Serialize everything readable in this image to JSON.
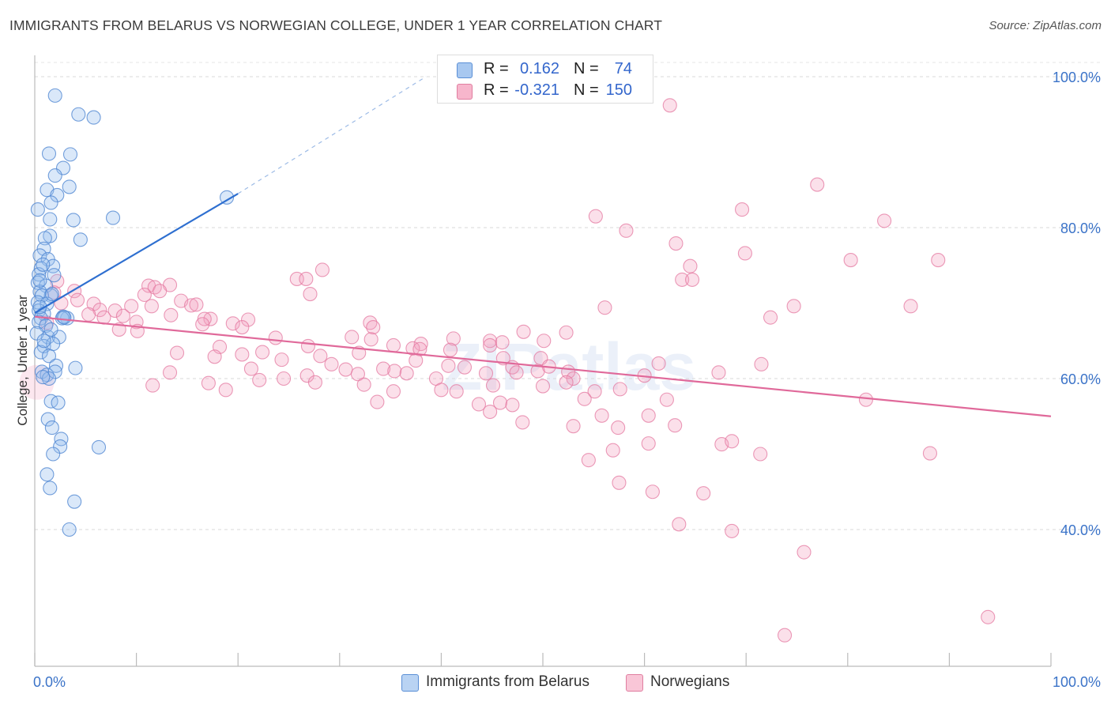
{
  "title": "IMMIGRANTS FROM BELARUS VS NORWEGIAN COLLEGE, UNDER 1 YEAR CORRELATION CHART",
  "source": "Source: ZipAtlas.com",
  "watermark": "ZIPatlas",
  "legend_top": [
    {
      "r_label": "R =",
      "r_value": "0.162",
      "n_label": "N =",
      "n_value": "74",
      "fill": "#a8c8f0",
      "stroke": "#5a8fd6"
    },
    {
      "r_label": "R =",
      "r_value": "-0.321",
      "n_label": "N =",
      "n_value": "150",
      "fill": "#f7b6cc",
      "stroke": "#e07ea0"
    }
  ],
  "legend_bottom": [
    {
      "label": "Immigrants from Belarus",
      "fill": "#a8c8f0",
      "stroke": "#5a8fd6"
    },
    {
      "label": "Norwegians",
      "fill": "#f7b6cc",
      "stroke": "#e07ea0"
    }
  ],
  "chart_data": {
    "type": "scatter",
    "title": "IMMIGRANTS FROM BELARUS VS NORWEGIAN COLLEGE, UNDER 1 YEAR CORRELATION CHART",
    "ylabel": "College, Under 1 year",
    "xlabel": "",
    "xlim": [
      0,
      100
    ],
    "ylim": [
      20,
      102
    ],
    "x_tick_labels": [
      {
        "value": 0,
        "label": "0.0%"
      },
      {
        "value": 100,
        "label": "100.0%"
      }
    ],
    "y_tick_labels": [
      {
        "value": 100,
        "label": "100.0%"
      },
      {
        "value": 80,
        "label": "80.0%"
      },
      {
        "value": 60,
        "label": "60.0%"
      },
      {
        "value": 40,
        "label": "40.0%"
      }
    ],
    "grid": "horizontal dashed",
    "legend_placement": "top-center and bottom",
    "colors": {
      "belarus": "#6d9ee0",
      "norwegians": "#ec8cae",
      "belarus_line": "#2e6fd0",
      "norwegians_line": "#e0699a",
      "tick_label": "#3b73c8"
    },
    "series": [
      {
        "name": "Immigrants from Belarus",
        "points": [
          [
            2.0,
            97.5
          ],
          [
            4.3,
            95.0
          ],
          [
            5.8,
            94.6
          ],
          [
            1.4,
            89.8
          ],
          [
            3.5,
            89.7
          ],
          [
            2.8,
            87.9
          ],
          [
            2.0,
            86.9
          ],
          [
            1.2,
            85.0
          ],
          [
            3.4,
            85.4
          ],
          [
            2.2,
            84.3
          ],
          [
            1.6,
            83.3
          ],
          [
            0.3,
            82.4
          ],
          [
            1.5,
            81.1
          ],
          [
            3.8,
            81.0
          ],
          [
            7.7,
            81.3
          ],
          [
            18.9,
            84.0
          ],
          [
            1.5,
            78.9
          ],
          [
            4.5,
            78.4
          ],
          [
            1.0,
            78.6
          ],
          [
            0.9,
            77.2
          ],
          [
            0.5,
            76.3
          ],
          [
            1.3,
            75.8
          ],
          [
            0.6,
            74.6
          ],
          [
            1.8,
            74.9
          ],
          [
            0.4,
            73.8
          ],
          [
            1.9,
            73.7
          ],
          [
            0.3,
            72.7
          ],
          [
            1.1,
            72.3
          ],
          [
            0.5,
            71.5
          ],
          [
            1.6,
            71.0
          ],
          [
            0.7,
            71.0
          ],
          [
            0.3,
            70.1
          ],
          [
            1.2,
            69.9
          ],
          [
            0.4,
            69.0
          ],
          [
            0.9,
            68.6
          ],
          [
            0.6,
            68.0
          ],
          [
            3.2,
            68.0
          ],
          [
            2.8,
            68.2
          ],
          [
            2.7,
            68.0
          ],
          [
            0.4,
            67.5
          ],
          [
            1.1,
            67.0
          ],
          [
            1.3,
            65.5
          ],
          [
            2.4,
            65.5
          ],
          [
            0.9,
            64.3
          ],
          [
            1.8,
            64.6
          ],
          [
            0.6,
            63.5
          ],
          [
            1.4,
            63.0
          ],
          [
            2.1,
            61.7
          ],
          [
            4.0,
            61.4
          ],
          [
            0.7,
            60.9
          ],
          [
            1.2,
            60.5
          ],
          [
            2.0,
            60.9
          ],
          [
            1.4,
            60.0
          ],
          [
            1.6,
            57.0
          ],
          [
            2.3,
            56.8
          ],
          [
            1.3,
            54.6
          ],
          [
            1.7,
            53.5
          ],
          [
            2.6,
            52.0
          ],
          [
            2.5,
            51.0
          ],
          [
            1.8,
            50.0
          ],
          [
            6.3,
            50.9
          ],
          [
            1.2,
            47.3
          ],
          [
            1.5,
            45.5
          ],
          [
            3.9,
            43.7
          ],
          [
            3.4,
            40.0
          ],
          [
            0.8,
            60.2
          ],
          [
            0.5,
            69.5
          ],
          [
            1.6,
            66.5
          ],
          [
            0.2,
            66.0
          ],
          [
            2.9,
            68.1
          ],
          [
            0.8,
            75.1
          ],
          [
            1.7,
            71.2
          ],
          [
            0.5,
            73.0
          ],
          [
            0.9,
            65.0
          ]
        ]
      },
      {
        "name": "Norwegians",
        "points": [
          [
            62.5,
            96.2
          ],
          [
            77.0,
            85.7
          ],
          [
            69.6,
            82.4
          ],
          [
            55.2,
            81.5
          ],
          [
            58.2,
            79.6
          ],
          [
            83.6,
            80.9
          ],
          [
            63.1,
            77.9
          ],
          [
            69.9,
            76.6
          ],
          [
            80.3,
            75.7
          ],
          [
            88.9,
            75.7
          ],
          [
            64.5,
            74.9
          ],
          [
            28.3,
            74.4
          ],
          [
            25.8,
            73.2
          ],
          [
            26.7,
            73.2
          ],
          [
            63.7,
            73.1
          ],
          [
            64.7,
            73.1
          ],
          [
            2.2,
            72.9
          ],
          [
            11.2,
            72.3
          ],
          [
            11.8,
            72.1
          ],
          [
            13.3,
            72.4
          ],
          [
            3.9,
            71.6
          ],
          [
            12.3,
            71.6
          ],
          [
            1.9,
            71.4
          ],
          [
            10.8,
            71.1
          ],
          [
            27.1,
            71.2
          ],
          [
            14.4,
            70.3
          ],
          [
            2.6,
            70.0
          ],
          [
            5.8,
            69.9
          ],
          [
            4.2,
            70.4
          ],
          [
            15.4,
            69.7
          ],
          [
            56.1,
            69.4
          ],
          [
            74.7,
            69.6
          ],
          [
            86.2,
            69.6
          ],
          [
            9.5,
            69.6
          ],
          [
            15.9,
            69.8
          ],
          [
            6.4,
            69.1
          ],
          [
            11.5,
            69.6
          ],
          [
            7.9,
            69.0
          ],
          [
            5.3,
            68.5
          ],
          [
            8.7,
            68.3
          ],
          [
            6.8,
            68.1
          ],
          [
            17.3,
            67.9
          ],
          [
            21.0,
            67.8
          ],
          [
            72.4,
            68.1
          ],
          [
            13.4,
            68.4
          ],
          [
            16.7,
            67.9
          ],
          [
            1.2,
            67.4
          ],
          [
            10.0,
            67.5
          ],
          [
            19.5,
            67.3
          ],
          [
            33.0,
            67.4
          ],
          [
            8.3,
            66.5
          ],
          [
            10.1,
            66.3
          ],
          [
            33.3,
            66.8
          ],
          [
            20.4,
            66.8
          ],
          [
            48.1,
            66.2
          ],
          [
            52.3,
            66.1
          ],
          [
            16.5,
            67.2
          ],
          [
            23.7,
            65.4
          ],
          [
            31.2,
            65.5
          ],
          [
            33.1,
            65.2
          ],
          [
            41.2,
            65.3
          ],
          [
            44.8,
            65.0
          ],
          [
            46.0,
            64.8
          ],
          [
            50.1,
            65.0
          ],
          [
            38.0,
            64.6
          ],
          [
            35.3,
            64.4
          ],
          [
            26.9,
            64.3
          ],
          [
            18.2,
            64.2
          ],
          [
            20.4,
            63.2
          ],
          [
            22.4,
            63.5
          ],
          [
            31.9,
            63.4
          ],
          [
            37.2,
            64.0
          ],
          [
            40.9,
            63.8
          ],
          [
            37.9,
            63.9
          ],
          [
            44.8,
            64.4
          ],
          [
            14.0,
            63.4
          ],
          [
            17.7,
            62.9
          ],
          [
            24.3,
            62.5
          ],
          [
            28.1,
            63.0
          ],
          [
            29.2,
            61.9
          ],
          [
            46.1,
            62.7
          ],
          [
            49.8,
            62.7
          ],
          [
            37.5,
            62.4
          ],
          [
            50.6,
            61.6
          ],
          [
            34.3,
            61.3
          ],
          [
            40.7,
            61.7
          ],
          [
            42.3,
            61.5
          ],
          [
            47.0,
            61.5
          ],
          [
            61.4,
            62.0
          ],
          [
            71.5,
            61.9
          ],
          [
            30.6,
            61.2
          ],
          [
            35.4,
            61.0
          ],
          [
            36.6,
            60.7
          ],
          [
            44.4,
            60.7
          ],
          [
            49.5,
            61.0
          ],
          [
            52.5,
            60.9
          ],
          [
            60.0,
            60.4
          ],
          [
            67.3,
            60.8
          ],
          [
            26.8,
            60.4
          ],
          [
            31.8,
            60.6
          ],
          [
            13.3,
            60.8
          ],
          [
            21.3,
            61.3
          ],
          [
            24.5,
            60.0
          ],
          [
            39.5,
            60.0
          ],
          [
            47.4,
            60.8
          ],
          [
            53.0,
            60.0
          ],
          [
            40.0,
            58.5
          ],
          [
            52.3,
            59.5
          ],
          [
            22.1,
            59.8
          ],
          [
            32.4,
            59.2
          ],
          [
            17.1,
            59.4
          ],
          [
            45.1,
            59.1
          ],
          [
            18.8,
            58.5
          ],
          [
            11.6,
            59.1
          ],
          [
            27.6,
            59.5
          ],
          [
            35.3,
            58.3
          ],
          [
            50.0,
            59.0
          ],
          [
            41.5,
            58.3
          ],
          [
            55.1,
            58.3
          ],
          [
            33.7,
            56.9
          ],
          [
            43.7,
            56.6
          ],
          [
            45.8,
            56.8
          ],
          [
            54.1,
            57.3
          ],
          [
            57.6,
            58.6
          ],
          [
            62.2,
            57.2
          ],
          [
            81.8,
            57.2
          ],
          [
            47.0,
            56.5
          ],
          [
            44.8,
            55.6
          ],
          [
            55.8,
            55.1
          ],
          [
            60.4,
            55.1
          ],
          [
            53.0,
            53.7
          ],
          [
            57.4,
            53.5
          ],
          [
            63.0,
            53.8
          ],
          [
            56.9,
            50.5
          ],
          [
            60.4,
            51.4
          ],
          [
            67.6,
            51.3
          ],
          [
            68.6,
            51.7
          ],
          [
            71.4,
            50.0
          ],
          [
            88.1,
            50.1
          ],
          [
            54.5,
            49.2
          ],
          [
            48.0,
            54.2
          ],
          [
            57.5,
            46.2
          ],
          [
            60.8,
            45.0
          ],
          [
            65.8,
            44.8
          ],
          [
            68.6,
            39.8
          ],
          [
            63.4,
            40.7
          ],
          [
            75.7,
            37.0
          ],
          [
            93.8,
            28.4
          ],
          [
            73.8,
            26.0
          ]
        ]
      }
    ],
    "trend_lines": [
      {
        "series": "Immigrants from Belarus",
        "from": [
          0,
          68.7
        ],
        "to": [
          20,
          84.5
        ],
        "dashed_to": [
          38.5,
          100
        ]
      },
      {
        "series": "Norwegians",
        "from": [
          0,
          68.2
        ],
        "to": [
          100,
          55.0
        ]
      }
    ]
  }
}
